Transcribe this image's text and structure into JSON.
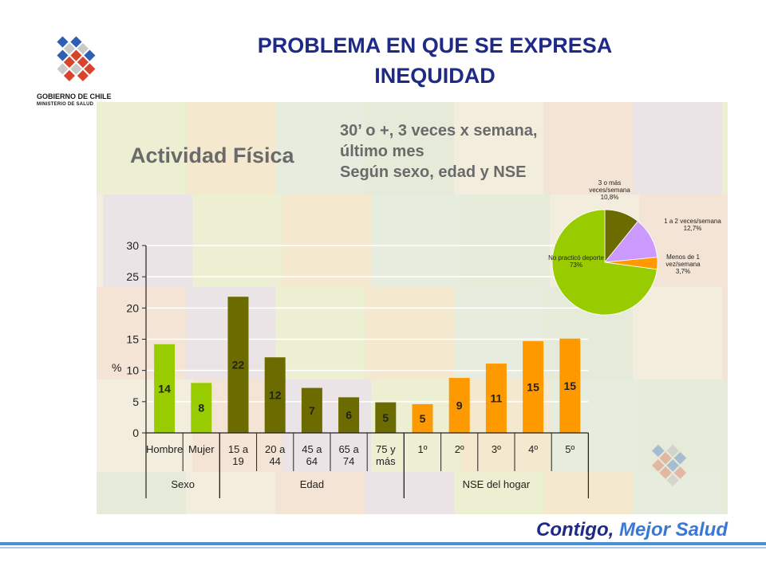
{
  "slide": {
    "title_line1": "PROBLEMA  EN QUE SE EXPRESA",
    "title_line2": "INEQUIDAD",
    "logo_title": "GOBIERNO DE CHILE",
    "logo_subtitle": "MINISTERIO DE SALUD",
    "slogan_part1": "Contigo,",
    "slogan_part2": "Mejor Salud"
  },
  "colors": {
    "title": "#1f2a86",
    "sexo": "#99cc00",
    "edad": "#6b6b00",
    "nse": "#ff9900",
    "lilac": "#cc99ff"
  },
  "chart_data": [
    {
      "type": "bar",
      "title": "Actividad Física",
      "subtitle_lines": [
        "30’ o +,  3 veces x semana,",
        "último mes",
        "Según sexo, edad y NSE"
      ],
      "ylabel": "%",
      "ylim": [
        0,
        30
      ],
      "yticks": [
        0,
        5,
        10,
        15,
        20,
        25,
        30
      ],
      "categories": [
        "Hombre",
        "Mujer",
        "15 a 19",
        "20 a 44",
        "45 a 64",
        "65 a 74",
        "75 y más",
        "1º",
        "2º",
        "3º",
        "4º",
        "5º"
      ],
      "category_lines": [
        [
          "Hombre"
        ],
        [
          "Mujer"
        ],
        [
          "15 a",
          "19"
        ],
        [
          "20 a",
          "44"
        ],
        [
          "45 a",
          "64"
        ],
        [
          "65 a",
          "74"
        ],
        [
          "75 y",
          "más"
        ],
        [
          "1º"
        ],
        [
          "2º"
        ],
        [
          "3º"
        ],
        [
          "4º"
        ],
        [
          "5º"
        ]
      ],
      "values": [
        14.2,
        8.0,
        21.8,
        12.1,
        7.2,
        5.7,
        4.9,
        4.6,
        8.8,
        11.1,
        14.7,
        15.1
      ],
      "value_labels": [
        "14",
        "8",
        "22",
        "12",
        "7",
        "6",
        "5",
        "5",
        "9",
        "11",
        "15",
        "15"
      ],
      "groups": [
        {
          "name": "Sexo",
          "start": 0,
          "end": 1,
          "color": "#99cc00"
        },
        {
          "name": "Edad",
          "start": 2,
          "end": 6,
          "color": "#6b6b00"
        },
        {
          "name": "NSE del hogar",
          "start": 7,
          "end": 11,
          "color": "#ff9900"
        }
      ],
      "grid": true
    },
    {
      "type": "pie",
      "slices": [
        {
          "label_lines": [
            "3 o más",
            "veces/semana",
            "10,8%"
          ],
          "value": 10.8,
          "color": "#6b6b00"
        },
        {
          "label_lines": [
            "1 a 2 veces/semana",
            "12,7%"
          ],
          "value": 12.7,
          "color": "#cc99ff"
        },
        {
          "label_lines": [
            "Menos de 1",
            "vez/semana",
            "3,7%"
          ],
          "value": 3.7,
          "color": "#ff9900"
        },
        {
          "label_lines": [
            "No practicó deporte",
            "73%"
          ],
          "value": 73,
          "color": "#99cc00"
        }
      ]
    }
  ]
}
